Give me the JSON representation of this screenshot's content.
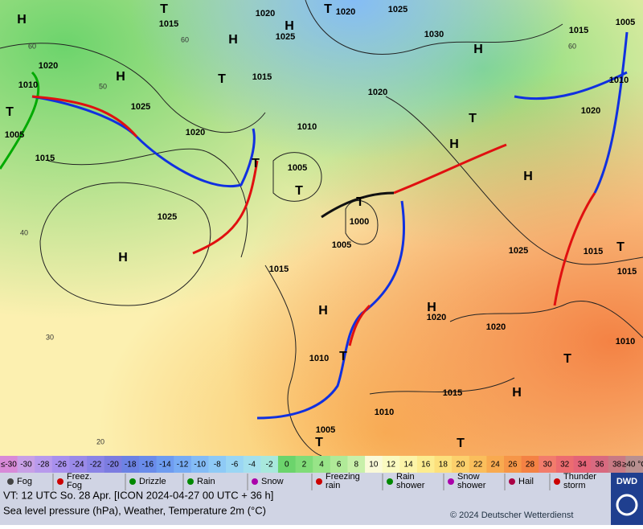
{
  "map": {
    "pressure_labels": [
      "1015",
      "1020",
      "1020",
      "1025",
      "1025",
      "1030",
      "1015",
      "1005",
      "1010",
      "1020",
      "1020",
      "1010",
      "1025",
      "1015",
      "1020",
      "1010",
      "1020",
      "1005",
      "1015",
      "1005",
      "1025",
      "1000",
      "1005",
      "1015",
      "1025",
      "1015",
      "1015",
      "1020",
      "1020",
      "1010",
      "1010",
      "1015",
      "1010",
      "1005"
    ],
    "centers": [
      "T",
      "T",
      "H",
      "H",
      "H",
      "H",
      "H",
      "T",
      "T",
      "T",
      "H",
      "H",
      "T",
      "T",
      "T",
      "H",
      "H",
      "H",
      "T",
      "T",
      "H",
      "T",
      "T",
      "T"
    ],
    "isotherm_labels": [
      "60",
      "60",
      "50",
      "40",
      "30",
      "20",
      "60"
    ],
    "scale": {
      "labels": [
        "≤-30",
        "-30",
        "-28",
        "-26",
        "-24",
        "-22",
        "-20",
        "-18",
        "-16",
        "-14",
        "-12",
        "-10",
        "-8",
        "-6",
        "-4",
        "-2",
        "0",
        "2",
        "4",
        "6",
        "8",
        "10",
        "12",
        "14",
        "16",
        "18",
        "20",
        "22",
        "24",
        "26",
        "28",
        "30",
        "32",
        "34",
        "36",
        "38",
        "≥40 °C"
      ],
      "colors": [
        "#d88ad8",
        "#c8a0e6",
        "#b89aec",
        "#a890ee",
        "#9a8ae8",
        "#8a84e6",
        "#7c7ce0",
        "#6c82e4",
        "#6a8cea",
        "#6e9cf0",
        "#78acf4",
        "#84bcf6",
        "#8ecaf6",
        "#9ad6f4",
        "#a4e0ee",
        "#a8e8dc",
        "#6cd46c",
        "#80dc78",
        "#98e488",
        "#b0ea98",
        "#c8f0aa",
        "#fafad8",
        "#fafac0",
        "#fcf4a8",
        "#fcec90",
        "#fce07c",
        "#fcd06c",
        "#fabe5c",
        "#f8aa50",
        "#f69648",
        "#f48244",
        "#f27c6c",
        "#ec6c70",
        "#e46478",
        "#d86a80",
        "#c87a84",
        "#b89090"
      ]
    },
    "legend": [
      {
        "lines": [
          "Fog"
        ]
      },
      {
        "lines": [
          "Freez.",
          "Fog"
        ]
      },
      {
        "lines": [
          "Drizzle"
        ]
      },
      {
        "lines": [
          "Rain"
        ]
      },
      {
        "lines": [
          "Snow"
        ]
      },
      {
        "lines": [
          "Freezing",
          "rain"
        ]
      },
      {
        "lines": [
          "Rain",
          "shower"
        ]
      },
      {
        "lines": [
          "Snow",
          "shower"
        ]
      },
      {
        "lines": [
          "Hail"
        ]
      },
      {
        "lines": [
          "Thunder",
          "storm"
        ]
      }
    ],
    "caption": {
      "valid_time": "VT: 12 UTC So.  28 Apr. [ICON 2024-04-27  00 UTC + 36 h]",
      "description": "Sea level pressure (hPa), Weather, Temperature 2m (°C)",
      "copyright": "© 2024 Deutscher Wetterdienst",
      "logo": "DWD"
    }
  }
}
